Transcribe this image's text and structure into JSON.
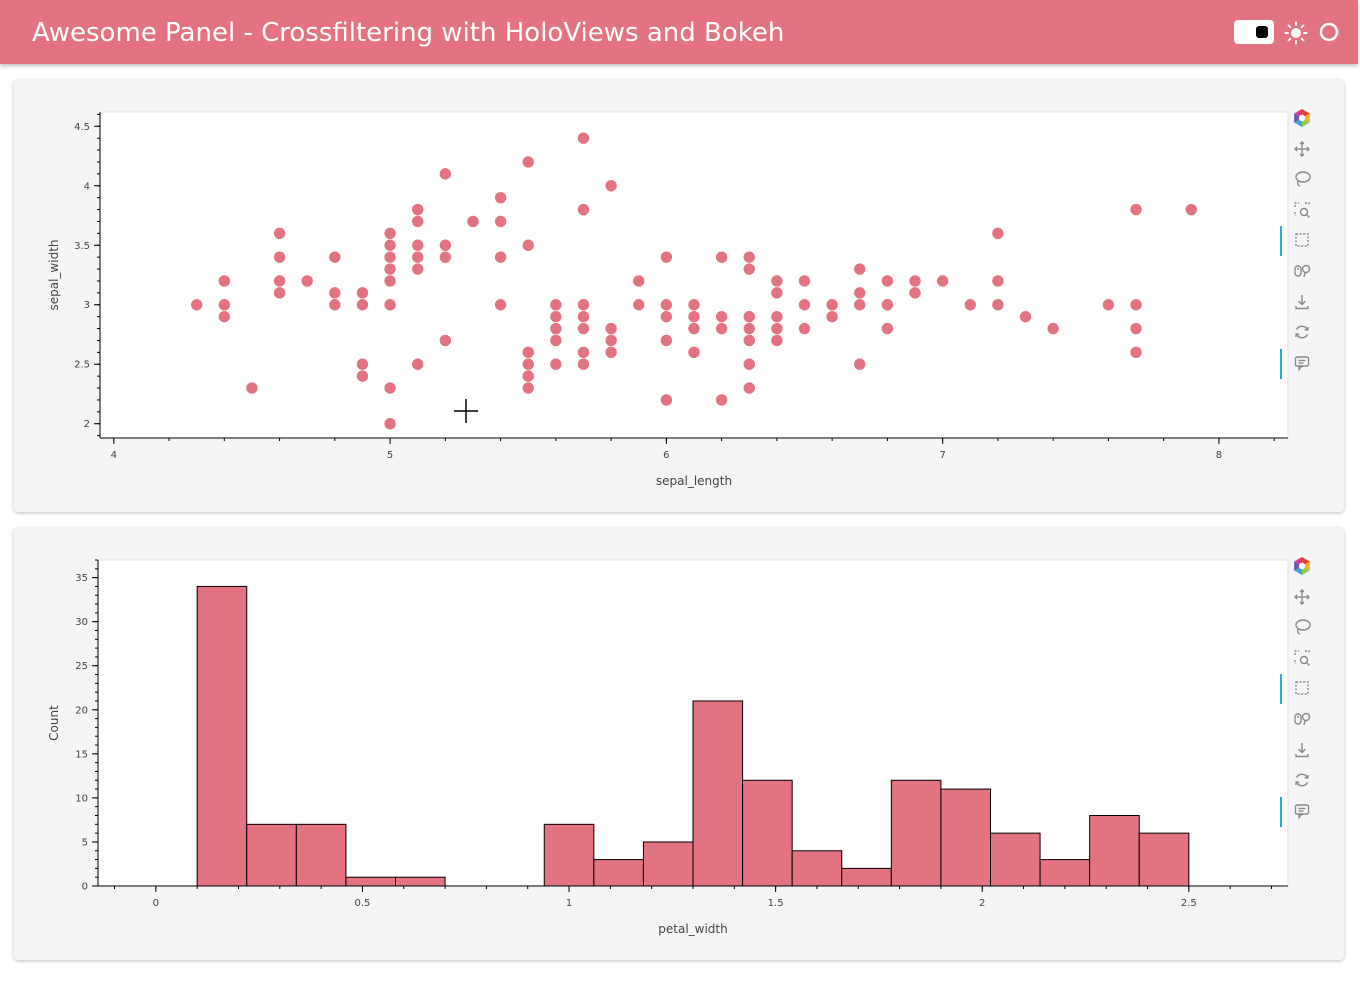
{
  "header": {
    "title": "Awesome Panel  -  Crossfiltering with HoloViews and Bokeh",
    "icons": [
      "toggle-switch-icon",
      "sun-icon",
      "circle-icon"
    ],
    "accent": "#e37381"
  },
  "toolbar_tools": [
    "bokeh-logo-icon",
    "pan-icon",
    "lasso-select-icon",
    "box-zoom-icon",
    "box-select-icon",
    "wheel-zoom-icon",
    "save-icon",
    "reset-icon",
    "hover-icon"
  ],
  "toolbar_active": [
    4,
    8
  ],
  "chart_data": [
    {
      "type": "scatter",
      "title": "",
      "xlabel": "sepal_length",
      "ylabel": "sepal_width",
      "xlim": [
        3.95,
        8.25
      ],
      "ylim": [
        1.88,
        4.62
      ],
      "xticks": [
        "4",
        "5",
        "6",
        "7",
        "8"
      ],
      "xtick_values": [
        4,
        5,
        6,
        7,
        8
      ],
      "yticks": [
        "2",
        "2.5",
        "3",
        "3.5",
        "4",
        "4.5"
      ],
      "ytick_values": [
        2,
        2.5,
        3,
        3.5,
        4,
        4.5
      ],
      "color": "#e37381",
      "points": [
        [
          4.3,
          3.0
        ],
        [
          4.4,
          3.2
        ],
        [
          4.4,
          3.0
        ],
        [
          4.4,
          2.9
        ],
        [
          4.5,
          2.3
        ],
        [
          4.6,
          3.6
        ],
        [
          4.6,
          3.4
        ],
        [
          4.6,
          3.2
        ],
        [
          4.6,
          3.1
        ],
        [
          4.7,
          3.2
        ],
        [
          4.8,
          3.4
        ],
        [
          4.8,
          3.1
        ],
        [
          4.8,
          3.0
        ],
        [
          4.9,
          3.1
        ],
        [
          4.9,
          3.0
        ],
        [
          4.9,
          2.5
        ],
        [
          4.9,
          2.4
        ],
        [
          5.0,
          3.6
        ],
        [
          5.0,
          3.5
        ],
        [
          5.0,
          3.4
        ],
        [
          5.0,
          3.3
        ],
        [
          5.0,
          3.2
        ],
        [
          5.0,
          3.0
        ],
        [
          5.0,
          2.3
        ],
        [
          5.0,
          2.0
        ],
        [
          5.1,
          3.8
        ],
        [
          5.1,
          3.7
        ],
        [
          5.1,
          3.5
        ],
        [
          5.1,
          3.4
        ],
        [
          5.1,
          3.3
        ],
        [
          5.1,
          2.5
        ],
        [
          5.2,
          4.1
        ],
        [
          5.2,
          3.5
        ],
        [
          5.2,
          3.4
        ],
        [
          5.2,
          2.7
        ],
        [
          5.3,
          3.7
        ],
        [
          5.4,
          3.9
        ],
        [
          5.4,
          3.7
        ],
        [
          5.4,
          3.4
        ],
        [
          5.4,
          3.0
        ],
        [
          5.5,
          4.2
        ],
        [
          5.5,
          3.5
        ],
        [
          5.5,
          2.6
        ],
        [
          5.5,
          2.5
        ],
        [
          5.5,
          2.4
        ],
        [
          5.5,
          2.3
        ],
        [
          5.6,
          3.0
        ],
        [
          5.6,
          2.9
        ],
        [
          5.6,
          2.8
        ],
        [
          5.6,
          2.7
        ],
        [
          5.6,
          2.5
        ],
        [
          5.7,
          4.4
        ],
        [
          5.7,
          3.8
        ],
        [
          5.7,
          3.0
        ],
        [
          5.7,
          2.9
        ],
        [
          5.7,
          2.8
        ],
        [
          5.7,
          2.6
        ],
        [
          5.7,
          2.5
        ],
        [
          5.8,
          4.0
        ],
        [
          5.8,
          2.8
        ],
        [
          5.8,
          2.7
        ],
        [
          5.8,
          2.6
        ],
        [
          5.9,
          3.2
        ],
        [
          5.9,
          3.0
        ],
        [
          6.0,
          3.4
        ],
        [
          6.0,
          3.0
        ],
        [
          6.0,
          2.9
        ],
        [
          6.0,
          2.7
        ],
        [
          6.0,
          2.2
        ],
        [
          6.1,
          3.0
        ],
        [
          6.1,
          2.9
        ],
        [
          6.1,
          2.8
        ],
        [
          6.1,
          2.6
        ],
        [
          6.2,
          3.4
        ],
        [
          6.2,
          2.9
        ],
        [
          6.2,
          2.8
        ],
        [
          6.2,
          2.2
        ],
        [
          6.3,
          3.4
        ],
        [
          6.3,
          3.3
        ],
        [
          6.3,
          2.9
        ],
        [
          6.3,
          2.8
        ],
        [
          6.3,
          2.7
        ],
        [
          6.3,
          2.5
        ],
        [
          6.3,
          2.3
        ],
        [
          6.4,
          3.2
        ],
        [
          6.4,
          3.1
        ],
        [
          6.4,
          2.9
        ],
        [
          6.4,
          2.8
        ],
        [
          6.4,
          2.7
        ],
        [
          6.5,
          3.2
        ],
        [
          6.5,
          3.0
        ],
        [
          6.5,
          2.8
        ],
        [
          6.6,
          3.0
        ],
        [
          6.6,
          2.9
        ],
        [
          6.7,
          3.3
        ],
        [
          6.7,
          3.1
        ],
        [
          6.7,
          3.0
        ],
        [
          6.7,
          2.5
        ],
        [
          6.8,
          3.2
        ],
        [
          6.8,
          3.0
        ],
        [
          6.8,
          2.8
        ],
        [
          6.9,
          3.2
        ],
        [
          6.9,
          3.1
        ],
        [
          7.0,
          3.2
        ],
        [
          7.1,
          3.0
        ],
        [
          7.2,
          3.6
        ],
        [
          7.2,
          3.2
        ],
        [
          7.2,
          3.0
        ],
        [
          7.3,
          2.9
        ],
        [
          7.4,
          2.8
        ],
        [
          7.6,
          3.0
        ],
        [
          7.7,
          3.8
        ],
        [
          7.7,
          3.0
        ],
        [
          7.7,
          2.8
        ],
        [
          7.7,
          2.6
        ],
        [
          7.9,
          3.8
        ]
      ]
    },
    {
      "type": "bar",
      "title": "",
      "xlabel": "petal_width",
      "ylabel": "Count",
      "xlim": [
        -0.14,
        2.74
      ],
      "ylim": [
        0,
        37
      ],
      "xticks": [
        "0",
        "0.5",
        "1",
        "1.5",
        "2",
        "2.5"
      ],
      "xtick_values": [
        0,
        0.5,
        1,
        1.5,
        2,
        2.5
      ],
      "yticks": [
        "0",
        "5",
        "10",
        "15",
        "20",
        "25",
        "30",
        "35"
      ],
      "ytick_values": [
        0,
        5,
        10,
        15,
        20,
        25,
        30,
        35
      ],
      "color": "#e37381",
      "bin_edges": [
        0.1,
        0.22,
        0.34,
        0.46,
        0.58,
        0.7,
        0.82,
        0.94,
        1.06,
        1.18,
        1.3,
        1.42,
        1.54,
        1.66,
        1.78,
        1.9,
        2.02,
        2.14,
        2.26,
        2.38,
        2.5
      ],
      "values": [
        34,
        7,
        7,
        1,
        1,
        0,
        0,
        7,
        3,
        5,
        21,
        12,
        4,
        2,
        12,
        11,
        6,
        3,
        8,
        6
      ]
    }
  ]
}
